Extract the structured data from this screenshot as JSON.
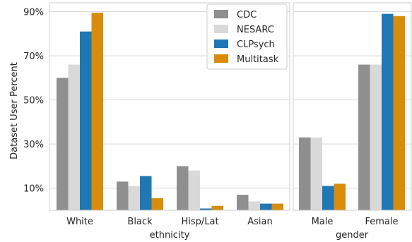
{
  "chart_data": {
    "type": "bar",
    "ylabel": "Dataset User Percent",
    "yticks": [
      "10%",
      "30%",
      "50%",
      "70%",
      "90%"
    ],
    "ylim": [
      0,
      94
    ],
    "grid": true,
    "legend_placement": "top-right of left panel",
    "series_colors": [
      "#8f8f8f",
      "#d9d9d9",
      "#1f78b4",
      "#d98c0a"
    ],
    "legend": [
      "CDC",
      "NESARC",
      "CLPsych",
      "Multitask"
    ],
    "panels": [
      {
        "xlabel": "ethnicity",
        "categories": [
          "White",
          "Black",
          "Hisp/Lat",
          "Asian"
        ],
        "series": [
          {
            "name": "CDC",
            "values": [
              60,
              13,
              20,
              7
            ]
          },
          {
            "name": "NESARC",
            "values": [
              66,
              11,
              18,
              4
            ]
          },
          {
            "name": "CLPsych",
            "values": [
              81,
              15.5,
              0.8,
              3
            ]
          },
          {
            "name": "Multitask",
            "values": [
              89.5,
              5.5,
              2,
              3
            ]
          }
        ]
      },
      {
        "xlabel": "gender",
        "categories": [
          "Male",
          "Female"
        ],
        "series": [
          {
            "name": "CDC",
            "values": [
              33,
              66
            ]
          },
          {
            "name": "NESARC",
            "values": [
              33,
              66
            ]
          },
          {
            "name": "CLPsych",
            "values": [
              11,
              89
            ]
          },
          {
            "name": "Multitask",
            "values": [
              12,
              88
            ]
          }
        ]
      }
    ]
  }
}
